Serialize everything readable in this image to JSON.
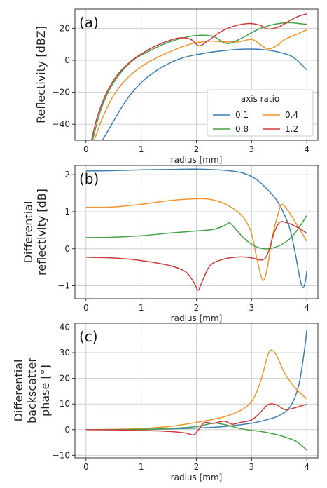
{
  "colors": {
    "0.1": "#3b7fb0",
    "0.4": "#f0952e",
    "0.8": "#44a047",
    "1.2": "#cc3b3b"
  },
  "chart_data": [
    {
      "panel_label": "(a)",
      "type": "line",
      "xlabel": "radius [mm]",
      "ylabel": "Reflectivity [dBZ]",
      "xlim": [
        -0.2,
        4.2
      ],
      "ylim": [
        -50,
        32
      ],
      "xticks": [
        0,
        1,
        2,
        3,
        4
      ],
      "yticks": [
        -40,
        -20,
        0,
        20
      ],
      "grid": true,
      "legend": {
        "title": "axis ratio",
        "placement": "lower-right",
        "columns": 2,
        "order": [
          "0.1",
          "0.8",
          "0.4",
          "1.2"
        ]
      },
      "series": [
        {
          "name": "0.1",
          "points": [
            [
              0.3,
              -50
            ],
            [
              0.5,
              -38
            ],
            [
              0.75,
              -24
            ],
            [
              1.0,
              -14
            ],
            [
              1.25,
              -7
            ],
            [
              1.5,
              -2
            ],
            [
              1.75,
              1.5
            ],
            [
              2.0,
              3.5
            ],
            [
              2.25,
              5
            ],
            [
              2.5,
              6
            ],
            [
              2.75,
              6.8
            ],
            [
              3.0,
              7
            ],
            [
              3.25,
              6.5
            ],
            [
              3.5,
              5
            ],
            [
              3.75,
              2
            ],
            [
              4.0,
              -6
            ]
          ]
        },
        {
          "name": "0.4",
          "points": [
            [
              0.15,
              -50
            ],
            [
              0.3,
              -36
            ],
            [
              0.5,
              -22
            ],
            [
              0.75,
              -11
            ],
            [
              1.0,
              -4
            ],
            [
              1.25,
              1
            ],
            [
              1.5,
              5
            ],
            [
              1.75,
              8.5
            ],
            [
              2.0,
              11
            ],
            [
              2.25,
              12
            ],
            [
              2.5,
              11.5
            ],
            [
              2.75,
              11.5
            ],
            [
              3.0,
              13
            ],
            [
              3.15,
              10
            ],
            [
              3.3,
              7
            ],
            [
              3.45,
              9
            ],
            [
              3.6,
              13
            ],
            [
              3.8,
              16
            ],
            [
              4.0,
              19
            ]
          ]
        },
        {
          "name": "0.8",
          "points": [
            [
              0.12,
              -50
            ],
            [
              0.25,
              -33
            ],
            [
              0.4,
              -20
            ],
            [
              0.6,
              -9
            ],
            [
              0.85,
              0
            ],
            [
              1.1,
              5
            ],
            [
              1.4,
              10
            ],
            [
              1.7,
              13.5
            ],
            [
              2.0,
              15.5
            ],
            [
              2.3,
              15
            ],
            [
              2.55,
              10.5
            ],
            [
              2.8,
              13.5
            ],
            [
              3.1,
              19
            ],
            [
              3.35,
              22
            ],
            [
              3.5,
              23
            ],
            [
              3.7,
              23.5
            ],
            [
              3.85,
              23
            ],
            [
              4.0,
              22.5
            ]
          ]
        },
        {
          "name": "1.2",
          "points": [
            [
              0.1,
              -50
            ],
            [
              0.2,
              -36
            ],
            [
              0.35,
              -22
            ],
            [
              0.55,
              -10
            ],
            [
              0.8,
              -1
            ],
            [
              1.1,
              6
            ],
            [
              1.4,
              11
            ],
            [
              1.7,
              14
            ],
            [
              1.9,
              13
            ],
            [
              2.05,
              9
            ],
            [
              2.2,
              12
            ],
            [
              2.45,
              18
            ],
            [
              2.7,
              21.5
            ],
            [
              2.95,
              23
            ],
            [
              3.15,
              22
            ],
            [
              3.3,
              19.5
            ],
            [
              3.5,
              21
            ],
            [
              3.7,
              25
            ],
            [
              3.85,
              27.5
            ],
            [
              4.0,
              29
            ]
          ]
        }
      ]
    },
    {
      "panel_label": "(b)",
      "type": "line",
      "xlabel": "radius [mm]",
      "ylabel_lines": [
        "Differential",
        "reflectivity [dB]"
      ],
      "xlim": [
        -0.2,
        4.2
      ],
      "ylim": [
        -1.35,
        2.25
      ],
      "xticks": [
        0,
        1,
        2,
        3,
        4
      ],
      "yticks": [
        -1,
        0,
        1,
        2
      ],
      "grid": true,
      "series": [
        {
          "name": "0.1",
          "points": [
            [
              0,
              2.1
            ],
            [
              0.5,
              2.11
            ],
            [
              1.0,
              2.13
            ],
            [
              1.5,
              2.14
            ],
            [
              2.0,
              2.15
            ],
            [
              2.5,
              2.12
            ],
            [
              2.8,
              2.06
            ],
            [
              3.0,
              1.95
            ],
            [
              3.15,
              1.8
            ],
            [
              3.3,
              1.58
            ],
            [
              3.42,
              1.38
            ],
            [
              3.5,
              1.2
            ],
            [
              3.6,
              0.9
            ],
            [
              3.7,
              0.5
            ],
            [
              3.8,
              -0.2
            ],
            [
              3.88,
              -0.85
            ],
            [
              3.93,
              -1.05
            ],
            [
              3.97,
              -0.9
            ],
            [
              4.0,
              -0.6
            ]
          ]
        },
        {
          "name": "0.4",
          "points": [
            [
              0,
              1.12
            ],
            [
              0.5,
              1.13
            ],
            [
              1.0,
              1.2
            ],
            [
              1.5,
              1.3
            ],
            [
              2.0,
              1.35
            ],
            [
              2.3,
              1.32
            ],
            [
              2.6,
              1.15
            ],
            [
              2.85,
              0.85
            ],
            [
              3.0,
              0.4
            ],
            [
              3.1,
              -0.3
            ],
            [
              3.2,
              -0.85
            ],
            [
              3.28,
              -0.55
            ],
            [
              3.38,
              0.35
            ],
            [
              3.5,
              1.05
            ],
            [
              3.55,
              1.2
            ],
            [
              3.65,
              1.05
            ],
            [
              3.8,
              0.7
            ],
            [
              3.9,
              0.45
            ],
            [
              4.0,
              0.2
            ]
          ]
        },
        {
          "name": "0.8",
          "points": [
            [
              0,
              0.3
            ],
            [
              0.5,
              0.31
            ],
            [
              1.0,
              0.35
            ],
            [
              1.5,
              0.42
            ],
            [
              2.0,
              0.48
            ],
            [
              2.3,
              0.52
            ],
            [
              2.5,
              0.62
            ],
            [
              2.6,
              0.7
            ],
            [
              2.7,
              0.55
            ],
            [
              2.85,
              0.3
            ],
            [
              3.0,
              0.12
            ],
            [
              3.15,
              0.02
            ],
            [
              3.3,
              0.0
            ],
            [
              3.5,
              0.08
            ],
            [
              3.7,
              0.28
            ],
            [
              3.85,
              0.55
            ],
            [
              4.0,
              0.9
            ]
          ]
        },
        {
          "name": "1.2",
          "points": [
            [
              0,
              -0.23
            ],
            [
              0.5,
              -0.25
            ],
            [
              1.0,
              -0.32
            ],
            [
              1.5,
              -0.45
            ],
            [
              1.8,
              -0.62
            ],
            [
              1.95,
              -0.9
            ],
            [
              2.03,
              -1.12
            ],
            [
              2.1,
              -0.9
            ],
            [
              2.25,
              -0.45
            ],
            [
              2.5,
              -0.28
            ],
            [
              2.8,
              -0.22
            ],
            [
              3.0,
              -0.25
            ],
            [
              3.2,
              -0.3
            ],
            [
              3.3,
              -0.1
            ],
            [
              3.4,
              0.4
            ],
            [
              3.5,
              0.7
            ],
            [
              3.6,
              0.72
            ],
            [
              3.8,
              0.6
            ],
            [
              4.0,
              0.42
            ]
          ]
        }
      ]
    },
    {
      "panel_label": "(c)",
      "type": "line",
      "xlabel": "radius [mm]",
      "ylabel_lines": [
        "Differential",
        "backscatter",
        "phase [°]"
      ],
      "xlim": [
        -0.2,
        4.2
      ],
      "ylim": [
        -11,
        41.5
      ],
      "xticks": [
        0,
        1,
        2,
        3,
        4
      ],
      "yticks": [
        -10,
        0,
        10,
        20,
        30,
        40
      ],
      "grid": true,
      "series": [
        {
          "name": "0.1",
          "points": [
            [
              0,
              0
            ],
            [
              1.0,
              0.1
            ],
            [
              1.5,
              0.3
            ],
            [
              2.0,
              0.6
            ],
            [
              2.5,
              1.2
            ],
            [
              3.0,
              2.5
            ],
            [
              3.3,
              4
            ],
            [
              3.5,
              5.5
            ],
            [
              3.7,
              9
            ],
            [
              3.85,
              17
            ],
            [
              3.95,
              30
            ],
            [
              4.0,
              39
            ]
          ]
        },
        {
          "name": "0.4",
          "points": [
            [
              0,
              0
            ],
            [
              0.5,
              0.1
            ],
            [
              1.0,
              0.4
            ],
            [
              1.5,
              1.2
            ],
            [
              2.0,
              2.8
            ],
            [
              2.5,
              5
            ],
            [
              2.8,
              7.5
            ],
            [
              3.0,
              11
            ],
            [
              3.15,
              18
            ],
            [
              3.28,
              28
            ],
            [
              3.35,
              31
            ],
            [
              3.45,
              29
            ],
            [
              3.6,
              22
            ],
            [
              3.8,
              16
            ],
            [
              4.0,
              12
            ]
          ]
        },
        {
          "name": "0.8",
          "points": [
            [
              0,
              0
            ],
            [
              0.5,
              0
            ],
            [
              1.0,
              0.1
            ],
            [
              1.5,
              0.4
            ],
            [
              2.0,
              1.2
            ],
            [
              2.3,
              2.5
            ],
            [
              2.45,
              2.2
            ],
            [
              2.6,
              1.5
            ],
            [
              2.8,
              0.4
            ],
            [
              3.0,
              -0.3
            ],
            [
              3.2,
              -0.8
            ],
            [
              3.5,
              -2.2
            ],
            [
              3.8,
              -4.5
            ],
            [
              4.0,
              -8
            ]
          ]
        },
        {
          "name": "1.2",
          "points": [
            [
              0,
              0
            ],
            [
              0.5,
              -0.1
            ],
            [
              1.0,
              -0.3
            ],
            [
              1.5,
              -0.7
            ],
            [
              1.8,
              -1.3
            ],
            [
              1.95,
              -2
            ],
            [
              2.05,
              0.3
            ],
            [
              2.15,
              2.8
            ],
            [
              2.3,
              2.4
            ],
            [
              2.5,
              3.3
            ],
            [
              2.65,
              2.1
            ],
            [
              2.8,
              2.8
            ],
            [
              3.0,
              3.8
            ],
            [
              3.15,
              6.5
            ],
            [
              3.3,
              9.8
            ],
            [
              3.45,
              9.7
            ],
            [
              3.6,
              7.8
            ],
            [
              3.75,
              8.3
            ],
            [
              3.9,
              9.3
            ],
            [
              4.0,
              9.8
            ]
          ]
        }
      ]
    }
  ]
}
